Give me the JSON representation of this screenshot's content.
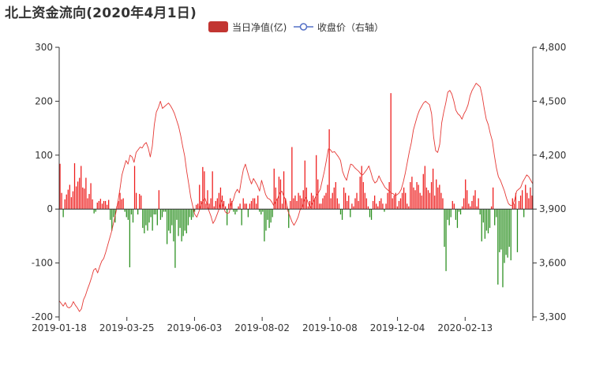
{
  "title": "北上资金流向(2020年4月1日)",
  "legend": {
    "bar_label": "当日净值(亿)",
    "line_label": "收盘价（右轴）"
  },
  "colors": {
    "positive_bar": "#ee1c1c",
    "negative_bar": "#2a8f1f",
    "line": "#e53935",
    "legend_bar": "#c23531",
    "axis": "#333333"
  },
  "chart_data": {
    "type": "bar",
    "title": "北上资金流向(2020年4月1日)",
    "x_tick_labels": [
      "2019-01-18",
      "2019-03-25",
      "2019-06-03",
      "2019-08-02",
      "2019-10-08",
      "2019-12-04",
      "2020-02-13"
    ],
    "y_left": {
      "min": -200,
      "max": 300,
      "ticks": [
        -200,
        -100,
        0,
        100,
        200,
        300
      ]
    },
    "y_right": {
      "min": 3300,
      "max": 4800,
      "ticks": [
        "3,300",
        "3,600",
        "3,900",
        "4,200",
        "4,500",
        "4,800"
      ]
    },
    "series": [
      {
        "name": "当日净值(亿)",
        "type": "bar",
        "axis": "left",
        "values": [
          84,
          30,
          -15,
          18,
          27,
          36,
          45,
          22,
          33,
          85,
          42,
          51,
          58,
          80,
          40,
          38,
          58,
          20,
          28,
          48,
          18,
          -8,
          -5,
          12,
          15,
          19,
          10,
          15,
          15,
          8,
          17,
          -20,
          -40,
          -15,
          -25,
          5,
          15,
          30,
          18,
          20,
          -5,
          -15,
          -20,
          -108,
          -10,
          -25,
          80,
          30,
          -10,
          28,
          25,
          -35,
          -45,
          -30,
          -40,
          -25,
          -15,
          -40,
          -10,
          -10,
          -30,
          35,
          -20,
          -15,
          -5,
          -5,
          -65,
          -40,
          -45,
          -30,
          -60,
          -109,
          -20,
          -50,
          -35,
          -60,
          -50,
          -40,
          -45,
          -30,
          -15,
          -20,
          -15,
          -5,
          8,
          10,
          45,
          15,
          78,
          70,
          10,
          35,
          10,
          20,
          70,
          5,
          15,
          20,
          30,
          40,
          25,
          15,
          5,
          -30,
          10,
          20,
          15,
          -5,
          -10,
          -5,
          5,
          10,
          -30,
          20,
          10,
          10,
          -15,
          10,
          15,
          20,
          20,
          10,
          25,
          -5,
          -10,
          -5,
          -60,
          -40,
          -20,
          -35,
          -25,
          -15,
          75,
          40,
          20,
          60,
          55,
          10,
          70,
          20,
          5,
          -35,
          15,
          115,
          20,
          25,
          15,
          30,
          25,
          20,
          35,
          90,
          40,
          5,
          15,
          30,
          25,
          20,
          100,
          55,
          10,
          10,
          20,
          25,
          30,
          45,
          148,
          20,
          30,
          40,
          50,
          20,
          10,
          -10,
          -20,
          40,
          30,
          15,
          25,
          -15,
          10,
          5,
          20,
          30,
          15,
          60,
          80,
          50,
          30,
          20,
          5,
          -15,
          -20,
          15,
          25,
          10,
          5,
          15,
          20,
          10,
          -5,
          10,
          30,
          50,
          215,
          20,
          25,
          30,
          5,
          15,
          20,
          30,
          40,
          30,
          10,
          5,
          50,
          60,
          40,
          35,
          50,
          45,
          30,
          25,
          65,
          80,
          40,
          35,
          30,
          50,
          75,
          25,
          55,
          40,
          45,
          30,
          20,
          -70,
          -115,
          -20,
          -30,
          -15,
          15,
          10,
          -20,
          -35,
          -5,
          -10,
          5,
          20,
          55,
          35,
          10,
          5,
          15,
          25,
          35,
          5,
          20,
          -10,
          -60,
          -25,
          -55,
          -40,
          -45,
          -35,
          5,
          40,
          -30,
          -15,
          -140,
          -80,
          -75,
          -145,
          -100,
          -85,
          -90,
          -70,
          -95,
          20,
          10,
          30,
          -80,
          15,
          25,
          35,
          -15,
          45,
          30,
          20,
          40,
          25
        ],
        "color_positive": "#ee1c1c",
        "color_negative": "#2a8f1f"
      },
      {
        "name": "收盘价（右轴）",
        "type": "line",
        "axis": "right",
        "x_start": "2019-01-18",
        "x_end": "2020-04-01",
        "values": [
          3390,
          3375,
          3360,
          3380,
          3355,
          3350,
          3360,
          3385,
          3365,
          3350,
          3330,
          3345,
          3395,
          3420,
          3455,
          3485,
          3520,
          3560,
          3570,
          3545,
          3580,
          3610,
          3625,
          3660,
          3700,
          3740,
          3780,
          3830,
          3880,
          3940,
          4010,
          4090,
          4130,
          4170,
          4150,
          4200,
          4190,
          4160,
          4215,
          4230,
          4245,
          4240,
          4260,
          4270,
          4240,
          4190,
          4250,
          4370,
          4440,
          4465,
          4500,
          4460,
          4470,
          4480,
          4490,
          4475,
          4455,
          4430,
          4395,
          4360,
          4310,
          4250,
          4195,
          4110,
          4040,
          3965,
          3915,
          3870,
          3855,
          3885,
          3920,
          3945,
          3960,
          3930,
          3890,
          3860,
          3820,
          3840,
          3870,
          3900,
          3950,
          3920,
          3885,
          3875,
          3880,
          3930,
          3950,
          3990,
          4010,
          3990,
          4060,
          4120,
          4150,
          4110,
          4070,
          4040,
          4070,
          4050,
          4030,
          4000,
          4060,
          4020,
          3980,
          3960,
          3955,
          3940,
          3920,
          3945,
          3960,
          3990,
          4000,
          3970,
          3950,
          3890,
          3860,
          3830,
          3810,
          3830,
          3855,
          3895,
          3910,
          3950,
          3965,
          3935,
          3905,
          3930,
          3950,
          3975,
          3990,
          4010,
          4060,
          4110,
          4170,
          4235,
          4230,
          4215,
          4220,
          4205,
          4190,
          4170,
          4110,
          4080,
          4060,
          4110,
          4150,
          4145,
          4130,
          4120,
          4110,
          4095,
          4090,
          4105,
          4120,
          4140,
          4105,
          4065,
          4045,
          4055,
          4085,
          4060,
          4040,
          4020,
          4010,
          4000,
          3990,
          3985,
          3975,
          3980,
          3990,
          4010,
          4050,
          4100,
          4160,
          4220,
          4270,
          4340,
          4380,
          4420,
          4450,
          4470,
          4490,
          4500,
          4490,
          4480,
          4430,
          4300,
          4225,
          4215,
          4260,
          4380,
          4440,
          4490,
          4550,
          4560,
          4540,
          4500,
          4450,
          4430,
          4420,
          4400,
          4430,
          4450,
          4480,
          4530,
          4560,
          4580,
          4600,
          4590,
          4580,
          4530,
          4460,
          4400,
          4370,
          4320,
          4280,
          4200,
          4130,
          4080,
          4060,
          4030,
          4000,
          3960,
          3930,
          3920,
          3920,
          3950,
          4000,
          4010,
          4020,
          4050,
          4070,
          4090,
          4080,
          4060,
          4040
        ],
        "color": "#e53935"
      }
    ],
    "grid": false,
    "legend_position": "top-center"
  }
}
